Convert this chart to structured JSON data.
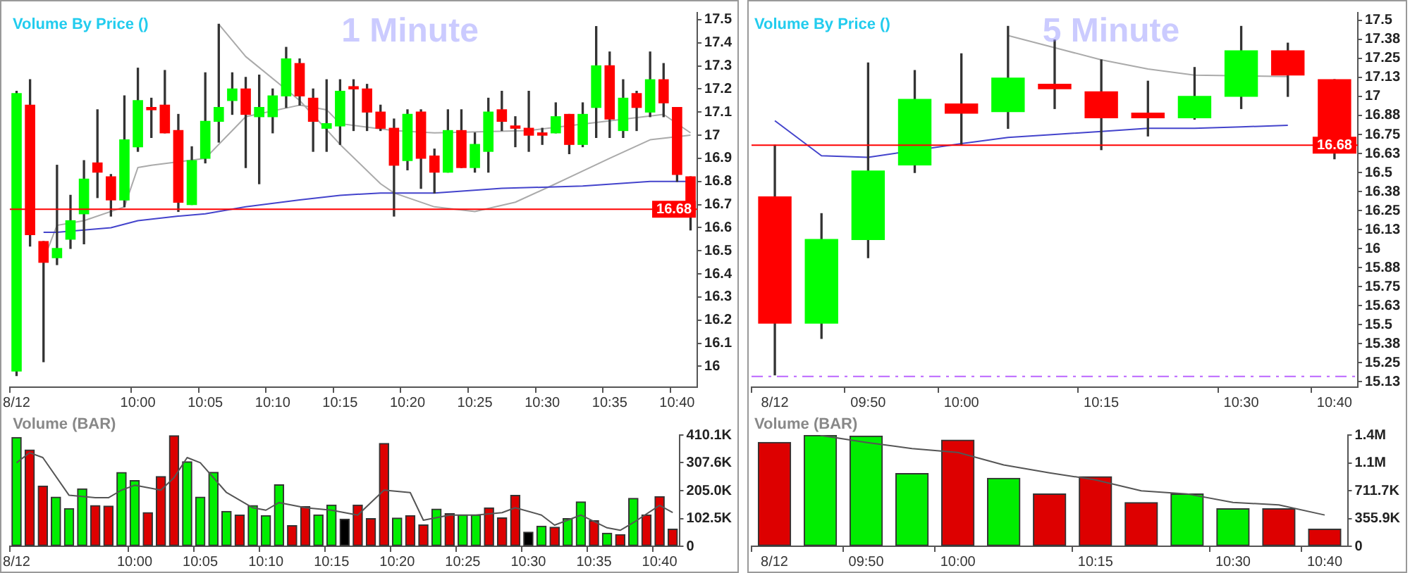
{
  "chart_data": [
    {
      "type": "candlestick",
      "title": "1 Minute",
      "annotations": [
        "Volume By Price ()"
      ],
      "categories": [
        "8/12",
        null,
        null,
        null,
        null,
        null,
        null,
        null,
        null,
        "10:00",
        null,
        null,
        null,
        null,
        "10:05",
        null,
        null,
        null,
        null,
        "10:10",
        null,
        null,
        null,
        null,
        "10:15",
        null,
        null,
        null,
        null,
        "10:20",
        null,
        null,
        null,
        null,
        "10:25",
        null,
        null,
        null,
        null,
        "10:30",
        null,
        null,
        null,
        null,
        "10:35",
        null,
        null,
        null,
        null,
        "10:40",
        null
      ],
      "ohlc": [
        [
          15.98,
          17.19,
          15.96,
          17.18
        ],
        [
          17.13,
          17.24,
          16.52,
          16.57
        ],
        [
          16.54,
          16.54,
          16.02,
          16.45
        ],
        [
          16.47,
          16.87,
          16.44,
          16.51
        ],
        [
          16.55,
          16.74,
          16.51,
          16.63
        ],
        [
          16.66,
          16.89,
          16.53,
          16.81
        ],
        [
          16.88,
          17.11,
          16.73,
          16.84
        ],
        [
          16.82,
          16.83,
          16.65,
          16.72
        ],
        [
          16.72,
          17.17,
          16.69,
          16.98
        ],
        [
          16.95,
          17.29,
          16.93,
          17.15
        ],
        [
          17.12,
          17.16,
          16.99,
          17.11
        ],
        [
          17.13,
          17.28,
          17.01,
          17.01
        ],
        [
          17.02,
          17.09,
          16.67,
          16.71
        ],
        [
          16.7,
          16.95,
          16.7,
          16.89
        ],
        [
          16.9,
          17.27,
          16.88,
          17.06
        ],
        [
          17.06,
          17.48,
          16.97,
          17.12
        ],
        [
          17.15,
          17.27,
          17.09,
          17.2
        ],
        [
          17.2,
          17.25,
          16.86,
          17.09
        ],
        [
          17.08,
          17.26,
          16.79,
          17.12
        ],
        [
          17.08,
          17.2,
          17.01,
          17.17
        ],
        [
          17.17,
          17.38,
          17.12,
          17.33
        ],
        [
          17.31,
          17.33,
          17.13,
          17.17
        ],
        [
          17.16,
          17.2,
          16.93,
          17.06
        ],
        [
          17.03,
          17.24,
          16.93,
          17.05
        ],
        [
          17.04,
          17.24,
          16.96,
          17.19
        ],
        [
          17.21,
          17.24,
          17.02,
          17.2
        ],
        [
          17.2,
          17.22,
          17.02,
          17.1
        ],
        [
          17.1,
          17.13,
          17.02,
          17.03
        ],
        [
          17.03,
          17.07,
          16.65,
          16.87
        ],
        [
          16.89,
          17.11,
          16.85,
          17.09
        ],
        [
          17.1,
          17.11,
          16.77,
          16.9
        ],
        [
          16.91,
          16.94,
          16.75,
          16.84
        ],
        [
          16.84,
          17.11,
          16.84,
          17.02
        ],
        [
          17.02,
          17.11,
          16.86,
          16.86
        ],
        [
          16.86,
          17.01,
          16.84,
          16.96
        ],
        [
          16.93,
          17.16,
          16.84,
          17.1
        ],
        [
          17.11,
          17.19,
          17.02,
          17.06
        ],
        [
          17.04,
          17.08,
          16.95,
          17.03
        ],
        [
          17.03,
          17.19,
          16.93,
          17.0
        ],
        [
          17.01,
          17.03,
          16.96,
          17.0
        ],
        [
          17.01,
          17.14,
          17.01,
          17.08
        ],
        [
          17.09,
          17.09,
          16.92,
          16.96
        ],
        [
          16.96,
          17.14,
          16.95,
          17.09
        ],
        [
          17.12,
          17.47,
          16.99,
          17.3
        ],
        [
          17.3,
          17.36,
          16.99,
          17.07
        ],
        [
          17.02,
          17.24,
          16.99,
          17.16
        ],
        [
          17.18,
          17.19,
          17.02,
          17.12
        ],
        [
          17.1,
          17.36,
          17.08,
          17.24
        ],
        [
          17.24,
          17.31,
          17.08,
          17.14
        ],
        [
          17.12,
          17.12,
          16.8,
          16.83
        ],
        [
          16.82,
          16.82,
          16.59,
          16.68
        ]
      ],
      "colors": [
        "#00ff00",
        "#ff0000",
        "#ff0000",
        "#00ff00",
        "#00ff00",
        "#00ff00",
        "#ff0000",
        "#ff0000",
        "#00ff00",
        "#00ff00",
        "#ff0000",
        "#ff0000",
        "#ff0000",
        "#00ff00",
        "#00ff00",
        "#00ff00",
        "#00ff00",
        "#ff0000",
        "#00ff00",
        "#00ff00",
        "#00ff00",
        "#ff0000",
        "#ff0000",
        "#00ff00",
        "#00ff00",
        "#ff0000",
        "#ff0000",
        "#ff0000",
        "#ff0000",
        "#00ff00",
        "#ff0000",
        "#ff0000",
        "#00ff00",
        "#ff0000",
        "#00ff00",
        "#00ff00",
        "#ff0000",
        "#ff0000",
        "#ff0000",
        "#ff0000",
        "#00ff00",
        "#ff0000",
        "#00ff00",
        "#00ff00",
        "#ff0000",
        "#00ff00",
        "#ff0000",
        "#00ff00",
        "#ff0000",
        "#ff0000",
        "#ff0000"
      ],
      "series": [
        {
          "type": "line",
          "color": "#4444cc",
          "values": [
            null,
            null,
            16.58,
            16.58,
            null,
            null,
            null,
            16.6,
            null,
            16.63,
            null,
            null,
            16.65,
            null,
            16.66,
            null,
            null,
            16.69,
            null,
            null,
            null,
            16.72,
            null,
            null,
            16.74,
            null,
            null,
            16.75,
            null,
            null,
            null,
            16.75,
            null,
            null,
            null,
            null,
            16.77,
            null,
            null,
            null,
            null,
            null,
            16.78,
            null,
            null,
            null,
            null,
            16.8,
            null,
            null,
            16.8
          ]
        },
        {
          "type": "line",
          "color": "#aaaaaa",
          "values": [
            null,
            null,
            16.46,
            16.61,
            null,
            16.63,
            null,
            null,
            16.69,
            16.86,
            16.87,
            null,
            null,
            null,
            16.9,
            null,
            17.02,
            17.08,
            null,
            null,
            null,
            17.13,
            null,
            17.11,
            17.05,
            null,
            null,
            null,
            17.02,
            null,
            null,
            17.01,
            null,
            null,
            null,
            null,
            null,
            null,
            17.02,
            null,
            null,
            null,
            null,
            null,
            null,
            null,
            null,
            null,
            17.09,
            null,
            17.01
          ]
        },
        {
          "type": "line",
          "color": "#aaaaaa",
          "values": [
            null,
            null,
            null,
            null,
            null,
            null,
            null,
            null,
            null,
            null,
            null,
            null,
            null,
            null,
            null,
            17.48,
            null,
            17.34,
            null,
            null,
            null,
            17.15,
            null,
            null,
            16.96,
            null,
            null,
            16.79,
            16.75,
            null,
            null,
            16.69,
            null,
            null,
            16.67,
            null,
            null,
            16.71,
            null,
            null,
            16.79,
            null,
            null,
            null,
            16.9,
            null,
            null,
            16.98,
            null,
            null,
            17.0
          ]
        }
      ],
      "ylim": [
        15.91,
        17.53
      ],
      "yticks": [
        16,
        16.1,
        16.2,
        16.3,
        16.4,
        16.5,
        16.6,
        16.7,
        16.8,
        16.9,
        17,
        17.1,
        17.2,
        17.3,
        17.4,
        17.5
      ],
      "ref_lines": [
        {
          "axis": "y",
          "value": 16.68,
          "label": "16.68",
          "color": "#ff0000"
        }
      ]
    },
    {
      "type": "bar",
      "annotations": [
        "Volume (BAR)"
      ],
      "categories": [
        "8/12",
        null,
        null,
        null,
        null,
        null,
        null,
        null,
        null,
        "10:00",
        null,
        null,
        null,
        null,
        "10:05",
        null,
        null,
        null,
        null,
        "10:10",
        null,
        null,
        null,
        null,
        "10:15",
        null,
        null,
        null,
        null,
        "10:20",
        null,
        null,
        null,
        null,
        "10:25",
        null,
        null,
        null,
        null,
        "10:30",
        null,
        null,
        null,
        null,
        "10:35",
        null,
        null,
        null,
        null,
        "10:40",
        null
      ],
      "series": [
        {
          "type": "bar",
          "colors": [
            "#00ee00",
            "#dd0000",
            "#dd0000",
            "#00ee00",
            "#00ee00",
            "#00ee00",
            "#dd0000",
            "#dd0000",
            "#00ee00",
            "#00ee00",
            "#dd0000",
            "#dd0000",
            "#dd0000",
            "#00ee00",
            "#00ee00",
            "#00ee00",
            "#00ee00",
            "#dd0000",
            "#00ee00",
            "#00ee00",
            "#00ee00",
            "#dd0000",
            "#dd0000",
            "#00ee00",
            "#00ee00",
            "#000000",
            "#dd0000",
            "#dd0000",
            "#dd0000",
            "#00ee00",
            "#dd0000",
            "#dd0000",
            "#00ee00",
            "#dd0000",
            "#00ee00",
            "#00ee00",
            "#dd0000",
            "#dd0000",
            "#dd0000",
            "#000000",
            "#00ee00",
            "#dd0000",
            "#00ee00",
            "#00ee00",
            "#dd0000",
            "#00ee00",
            "#dd0000",
            "#00ee00",
            "#dd0000",
            "#dd0000",
            "#dd0000"
          ],
          "values": [
            401000,
            355000,
            222000,
            181000,
            139000,
            212000,
            150000,
            148000,
            272000,
            242000,
            124000,
            257000,
            408000,
            312000,
            181000,
            273000,
            129000,
            115000,
            150000,
            113000,
            227000,
            76000,
            146000,
            116000,
            152000,
            100000,
            152000,
            102000,
            379000,
            104000,
            113000,
            79000,
            137000,
            120000,
            116000,
            116000,
            142000,
            105000,
            188000,
            52000,
            74000,
            70000,
            102000,
            164000,
            94000,
            48000,
            43000,
            177000,
            116000,
            183000,
            63000
          ]
        },
        {
          "type": "line",
          "color": "#555555",
          "values": [
            308000,
            345000,
            327000,
            null,
            188000,
            null,
            179000,
            179000,
            207000,
            225000,
            null,
            207000,
            253000,
            327000,
            308000,
            null,
            198000,
            null,
            142000,
            133000,
            161000,
            null,
            142000,
            null,
            133000,
            null,
            115000,
            null,
            207000,
            null,
            198000,
            96000,
            null,
            115000,
            null,
            115000,
            null,
            124000,
            142000,
            null,
            115000,
            78000,
            null,
            115000,
            null,
            68000,
            59000,
            87000,
            null,
            151000,
            124000
          ]
        }
      ],
      "ylim": [
        0,
        410100
      ],
      "yticks": [
        0,
        {
          "value": 102500,
          "label": "102.5K"
        },
        {
          "value": 205000,
          "label": "205.0K"
        },
        {
          "value": 307600,
          "label": "307.6K"
        },
        {
          "value": 410100,
          "label": "410.1K"
        }
      ]
    },
    {
      "type": "candlestick",
      "title": "5 Minute",
      "annotations": [
        "Volume By Price ()"
      ],
      "categories": [
        "8/12",
        null,
        "09:50",
        null,
        "10:00",
        null,
        null,
        "10:15",
        null,
        null,
        "10:30",
        null,
        "10:40"
      ],
      "ohlc": [
        [
          16.34,
          16.68,
          15.17,
          15.51
        ],
        [
          15.51,
          16.23,
          15.41,
          16.06
        ],
        [
          16.06,
          17.22,
          15.94,
          16.51
        ],
        [
          16.55,
          17.17,
          16.5,
          16.98
        ],
        [
          16.95,
          17.28,
          16.68,
          16.89
        ],
        [
          16.9,
          17.46,
          16.79,
          17.12
        ],
        [
          17.08,
          17.37,
          16.92,
          17.05
        ],
        [
          17.03,
          17.24,
          16.65,
          16.86
        ],
        [
          16.89,
          17.1,
          16.74,
          16.86
        ],
        [
          16.86,
          17.19,
          16.85,
          17.0
        ],
        [
          17.0,
          17.46,
          16.92,
          17.3
        ],
        [
          17.3,
          17.35,
          17.0,
          17.14
        ],
        [
          17.11,
          17.11,
          16.59,
          16.68
        ]
      ],
      "colors": [
        "#ff0000",
        "#00ff00",
        "#00ff00",
        "#00ff00",
        "#ff0000",
        "#00ff00",
        "#ff0000",
        "#ff0000",
        "#ff0000",
        "#00ff00",
        "#00ff00",
        "#ff0000",
        "#ff0000"
      ],
      "series": [
        {
          "type": "line",
          "color": "#4444cc",
          "values": [
            16.84,
            16.61,
            16.6,
            null,
            16.69,
            16.73,
            16.75,
            16.77,
            16.79,
            16.79,
            16.8,
            16.81,
            null
          ]
        },
        {
          "type": "line",
          "color": "#aaaaaa",
          "values": [
            null,
            null,
            null,
            null,
            null,
            17.4,
            17.32,
            17.24,
            17.18,
            17.14,
            null,
            17.13,
            null
          ]
        }
      ],
      "ylim": [
        15.09,
        17.55
      ],
      "yticks": [
        {
          "value": 15.125,
          "label": "15.13"
        },
        15.25,
        {
          "value": 15.375,
          "label": "15.38"
        },
        15.5,
        {
          "value": 15.625,
          "label": "15.63"
        },
        15.75,
        {
          "value": 15.875,
          "label": "15.88"
        },
        16,
        {
          "value": 16.125,
          "label": "16.13"
        },
        16.25,
        {
          "value": 16.375,
          "label": "16.38"
        },
        16.5,
        {
          "value": 16.625,
          "label": "16.63"
        },
        16.75,
        {
          "value": 16.875,
          "label": "16.88"
        },
        17,
        {
          "value": 17.125,
          "label": "17.13"
        },
        17.25,
        {
          "value": 17.375,
          "label": "17.38"
        },
        17.5
      ],
      "ref_lines": [
        {
          "axis": "y",
          "value": 16.68,
          "label": "16.68",
          "color": "#ff0000"
        },
        {
          "axis": "y",
          "value": 15.16,
          "color": "#bb66ff",
          "line_style": "dashed"
        }
      ]
    },
    {
      "type": "bar",
      "annotations": [
        "Volume (BAR)"
      ],
      "categories": [
        "8/12",
        null,
        "09:50",
        null,
        "10:00",
        null,
        null,
        "10:15",
        null,
        null,
        "10:30",
        null,
        "10:40"
      ],
      "series": [
        {
          "type": "bar",
          "colors": [
            "#dd0000",
            "#00ee00",
            "#00ee00",
            "#00ee00",
            "#dd0000",
            "#00ee00",
            "#dd0000",
            "#dd0000",
            "#dd0000",
            "#00ee00",
            "#00ee00",
            "#dd0000",
            "#dd0000"
          ],
          "values": [
            1330000,
            1420000,
            1410000,
            930000,
            1360000,
            870000,
            670000,
            890000,
            560000,
            670000,
            480000,
            480000,
            220000
          ]
        },
        {
          "type": "line",
          "color": "#555555",
          "values": [
            null,
            1420000,
            1330000,
            1250000,
            1200000,
            1040000,
            940000,
            850000,
            710000,
            670000,
            560000,
            530000,
            400000
          ]
        }
      ],
      "ylim": [
        0,
        1423600
      ],
      "yticks": [
        0,
        {
          "value": 355900,
          "label": "355.9K"
        },
        {
          "value": 711700,
          "label": "711.7K"
        },
        {
          "value": 1067700,
          "label": "1.1M"
        },
        {
          "value": 1423600,
          "label": "1.4M"
        }
      ]
    }
  ]
}
